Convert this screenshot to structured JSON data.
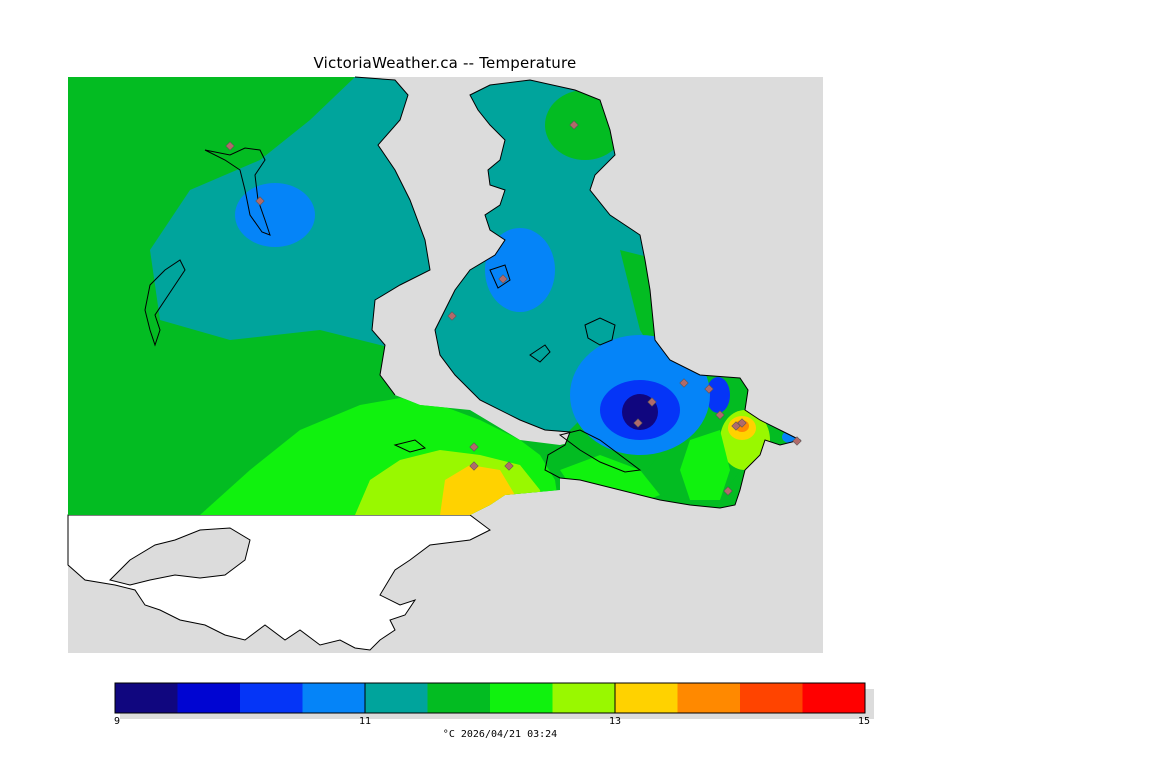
{
  "title": "VictoriaWeather.ca -- Temperature",
  "colors": {
    "land_background": "#dcdcdc",
    "outside_region": "#ffffff",
    "coastline": "#000000",
    "station_marker": "#b06a6a"
  },
  "legend": {
    "min": 9,
    "max": 15,
    "tick_labels": [
      "9",
      "11",
      "13",
      "15"
    ],
    "units_and_time": "°C  2026/04/21 03:24",
    "bins": [
      {
        "from": 9.0,
        "to": 9.5,
        "color": "#10067f"
      },
      {
        "from": 9.5,
        "to": 10.0,
        "color": "#0005d2"
      },
      {
        "from": 10.0,
        "to": 10.5,
        "color": "#0535f7"
      },
      {
        "from": 10.5,
        "to": 11.0,
        "color": "#0584f8"
      },
      {
        "from": 11.0,
        "to": 11.5,
        "color": "#00a49c"
      },
      {
        "from": 11.5,
        "to": 12.0,
        "color": "#03bc22"
      },
      {
        "from": 12.0,
        "to": 12.5,
        "color": "#10f20e"
      },
      {
        "from": 12.5,
        "to": 13.0,
        "color": "#99f800"
      },
      {
        "from": 13.0,
        "to": 13.5,
        "color": "#ffd200"
      },
      {
        "from": 13.5,
        "to": 14.0,
        "color": "#ff8900"
      },
      {
        "from": 14.0,
        "to": 14.5,
        "color": "#ff4400"
      },
      {
        "from": 14.5,
        "to": 15.0,
        "color": "#ff0000"
      }
    ]
  }
}
